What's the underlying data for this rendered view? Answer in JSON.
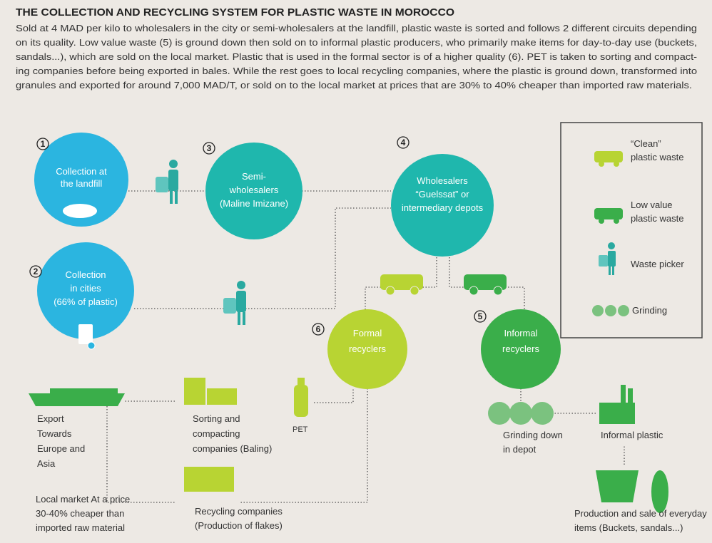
{
  "header": {
    "title": "THE COLLECTION AND RECYCLING SYSTEM FOR PLASTIC WASTE IN MOROCCO",
    "description": [
      "Sold at 4 MAD per kilo to wholesalers in the city or semi-wholesalers at the landfill, plastic waste is sorted and follows 2 different circuits depending",
      "on its quality.  Low value waste (5) is ground down then sold on to informal plastic producers, who primarily make items for day-to-day use (buckets,",
      "sandals...), which are sold on the local market. Plastic that is used in the formal sector is of a higher quality (6). PET is taken to sorting and compact-",
      "ing companies before being exported in bales. While the rest goes to local recycling companies, where the plastic is ground down, transformed into",
      "granules and exported for around 7,000 MAD/T, or sold on to the local market at prices that are 30% to 40% cheaper than imported raw materials."
    ]
  },
  "nodes": [
    {
      "number": "1",
      "label": [
        "Collection at",
        "the landfill"
      ]
    },
    {
      "number": "2",
      "label": [
        "Collection",
        "in cities",
        "(66% of plastic)"
      ]
    },
    {
      "number": "3",
      "label": [
        "Semi-",
        "wholesalers",
        "(Maline Imizane)"
      ]
    },
    {
      "number": "4",
      "label": [
        "Wholesalers",
        "“Guelssat” or",
        "intermediary depots"
      ]
    },
    {
      "number": "5",
      "label": [
        "Informal",
        "recyclers"
      ]
    },
    {
      "number": "6",
      "label": [
        "Formal",
        "recyclers"
      ]
    }
  ],
  "labels": {
    "export": [
      "Export",
      "Towards",
      "Europe and",
      "Asia"
    ],
    "sorting": [
      "Sorting and",
      "compacting",
      "companies (Baling)"
    ],
    "pet": "PET",
    "local_market": [
      "Local market At a price",
      "30-40% cheaper than",
      "imported raw material"
    ],
    "recycling": [
      "Recycling companies",
      "(Production of flakes)"
    ],
    "grinding_depot": [
      "Grinding down",
      "in depot"
    ],
    "informal_plastic": "Informal plastic",
    "production": [
      "Production and sale of everyday",
      "items (Buckets, sandals...)"
    ]
  },
  "legend": [
    {
      "label": [
        "“Clean”",
        "plastic waste"
      ]
    },
    {
      "label": [
        "Low value",
        "plastic waste"
      ]
    },
    {
      "label": [
        "Waste picker"
      ]
    },
    {
      "label": [
        "Grinding"
      ]
    }
  ]
}
